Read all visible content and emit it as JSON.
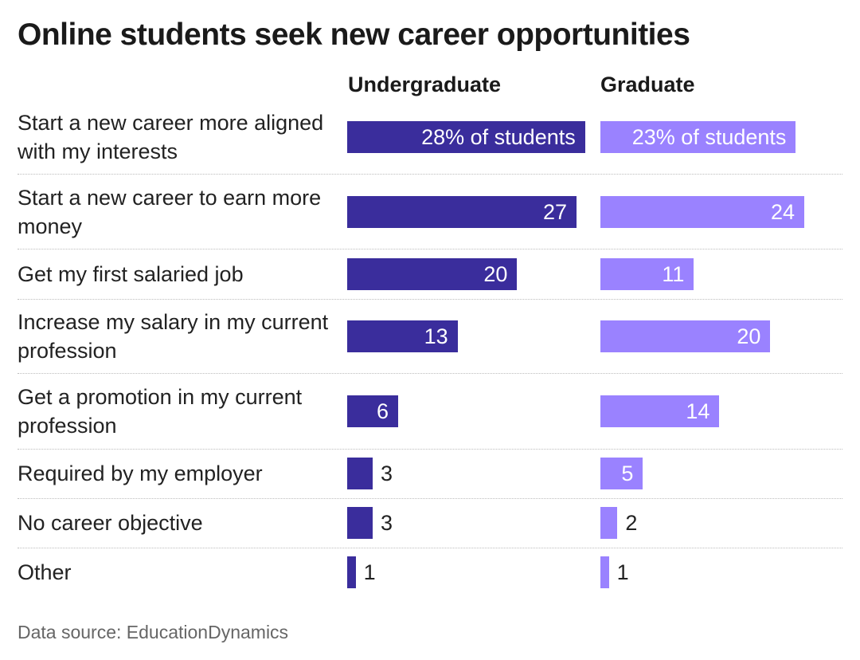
{
  "title": "Online students seek new career opportunities",
  "source": "Data source: EducationDynamics",
  "colors": {
    "undergraduate": "#3a2d9c",
    "graduate": "#9a82ff"
  },
  "chart_data": {
    "type": "bar",
    "orientation": "horizontal",
    "title": "Online students seek new career opportunities",
    "categories": [
      "Start a new career more aligned with my interests",
      "Start a new career to earn more money",
      "Get my first salaried job",
      "Increase my salary in my current profession",
      "Get a promotion in my current profession",
      "Required by my employer",
      "No career objective",
      "Other"
    ],
    "series": [
      {
        "name": "Undergraduate",
        "values": [
          28,
          27,
          20,
          13,
          6,
          3,
          3,
          1
        ],
        "labels": [
          "28% of students",
          "27",
          "20",
          "13",
          "6",
          "3",
          "3",
          "1"
        ]
      },
      {
        "name": "Graduate",
        "values": [
          23,
          24,
          11,
          20,
          14,
          5,
          2,
          1
        ],
        "labels": [
          "23% of students",
          "24",
          "11",
          "20",
          "14",
          "5",
          "2",
          "1"
        ]
      }
    ],
    "unit": "% of students",
    "source": "Data source: EducationDynamics"
  }
}
